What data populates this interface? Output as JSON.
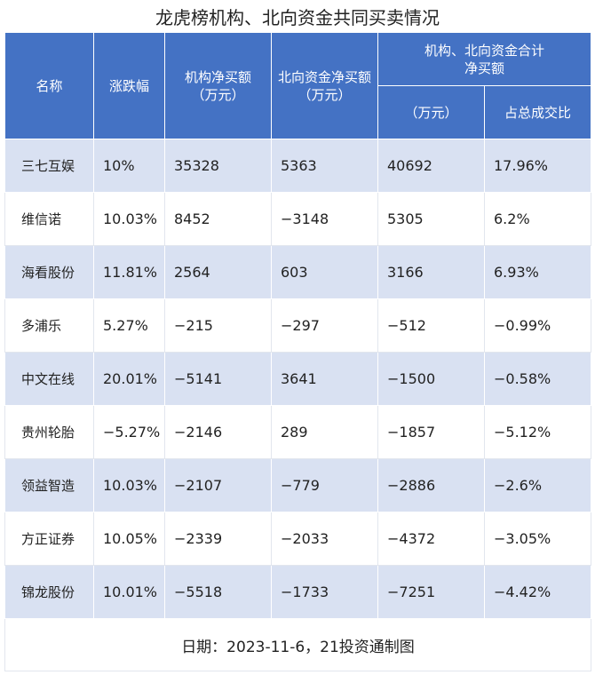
{
  "title": "龙虎榜机构、北向资金共同买卖情况",
  "headers": {
    "name": "名称",
    "change": "涨跌幅",
    "inst_net": "机构净买额（万元）",
    "north_net": "北向资金净买额（万元）",
    "combined_group": "机构、北向资金合计净买额",
    "combined_unit": "（万元）",
    "ratio": "占总成交比"
  },
  "rows": [
    {
      "name": "三七互娱",
      "change": "10%",
      "inst": "35328",
      "north": "5363",
      "total": "40692",
      "ratio": "17.96%"
    },
    {
      "name": "维信诺",
      "change": "10.03%",
      "inst": "8452",
      "north": "−3148",
      "total": "5305",
      "ratio": "6.2%"
    },
    {
      "name": "海看股份",
      "change": "11.81%",
      "inst": "2564",
      "north": "603",
      "total": "3166",
      "ratio": "6.93%"
    },
    {
      "name": "多浦乐",
      "change": "5.27%",
      "inst": "−215",
      "north": "−297",
      "total": "−512",
      "ratio": "−0.99%"
    },
    {
      "name": "中文在线",
      "change": "20.01%",
      "inst": "−5141",
      "north": "3641",
      "total": "−1500",
      "ratio": "−0.58%"
    },
    {
      "name": "贵州轮胎",
      "change": "−5.27%",
      "inst": "−2146",
      "north": "289",
      "total": "−1857",
      "ratio": "−5.12%"
    },
    {
      "name": "领益智造",
      "change": "10.03%",
      "inst": "−2107",
      "north": "−779",
      "total": "−2886",
      "ratio": "−2.6%"
    },
    {
      "name": "方正证券",
      "change": "10.05%",
      "inst": "−2339",
      "north": "−2033",
      "total": "−4372",
      "ratio": "−3.05%"
    },
    {
      "name": "锦龙股份",
      "change": "10.01%",
      "inst": "−5518",
      "north": "−1733",
      "total": "−7251",
      "ratio": "−4.42%"
    }
  ],
  "footer": "日期：2023-11-6，21投资通制图",
  "colors": {
    "header_bg": "#4472c4",
    "band_bg": "#d9e1f2"
  }
}
